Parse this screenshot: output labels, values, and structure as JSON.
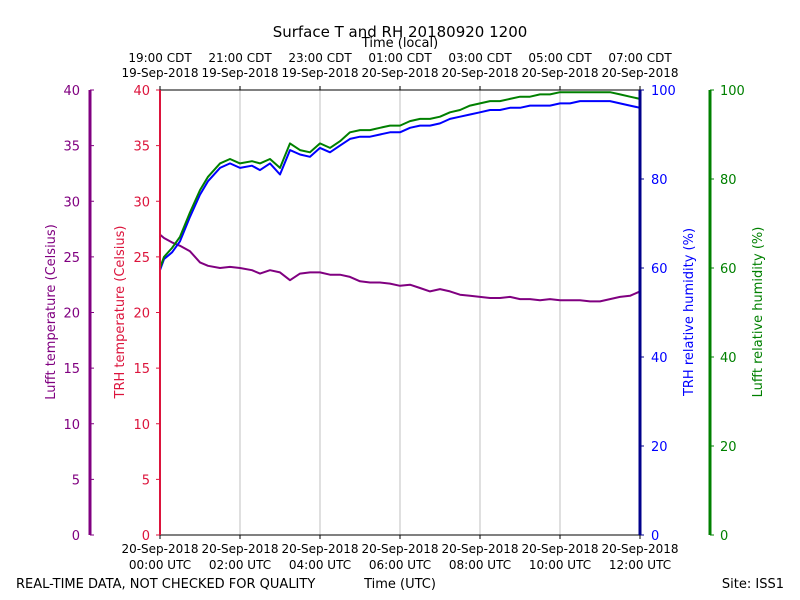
{
  "chart_data": {
    "type": "line",
    "title": "Surface T and RH 20180920 1200",
    "top_axis_title": "Time (local)",
    "xlabel": "Time (UTC)",
    "top_ticks": [
      {
        "time": "19:00 CDT",
        "date": "19-Sep-2018"
      },
      {
        "time": "21:00 CDT",
        "date": "19-Sep-2018"
      },
      {
        "time": "23:00 CDT",
        "date": "19-Sep-2018"
      },
      {
        "time": "01:00 CDT",
        "date": "20-Sep-2018"
      },
      {
        "time": "03:00 CDT",
        "date": "20-Sep-2018"
      },
      {
        "time": "05:00 CDT",
        "date": "20-Sep-2018"
      },
      {
        "time": "07:00 CDT",
        "date": "20-Sep-2018"
      }
    ],
    "bottom_ticks": [
      {
        "date": "20-Sep-2018",
        "time": "00:00 UTC"
      },
      {
        "date": "20-Sep-2018",
        "time": "02:00 UTC"
      },
      {
        "date": "20-Sep-2018",
        "time": "04:00 UTC"
      },
      {
        "date": "20-Sep-2018",
        "time": "06:00 UTC"
      },
      {
        "date": "20-Sep-2018",
        "time": "08:00 UTC"
      },
      {
        "date": "20-Sep-2018",
        "time": "10:00 UTC"
      },
      {
        "date": "20-Sep-2018",
        "time": "12:00 UTC"
      }
    ],
    "x_range_hours": [
      0,
      12
    ],
    "grid": true,
    "temp_axes": {
      "range": [
        0,
        40
      ],
      "ticks": [
        "0",
        "5",
        "10",
        "15",
        "20",
        "25",
        "30",
        "35",
        "40"
      ],
      "lufft_label": "Lufft temperature (Celsius)",
      "trh_label": "TRH temperature (Celsius)"
    },
    "rh_axes": {
      "range": [
        0,
        100
      ],
      "ticks": [
        "0",
        "20",
        "40",
        "60",
        "80",
        "100"
      ],
      "trh_label": "TRH relative humidity (%)",
      "lufft_label": "Lufft relative humidity (%)"
    },
    "series": [
      {
        "name": "Lufft temperature",
        "axis": "temperature",
        "color": "#800080",
        "x": [
          0,
          0.1,
          0.3,
          0.5,
          0.75,
          1.0,
          1.2,
          1.5,
          1.75,
          2.0,
          2.3,
          2.5,
          2.75,
          3.0,
          3.25,
          3.5,
          3.75,
          4.0,
          4.25,
          4.5,
          4.75,
          5.0,
          5.25,
          5.5,
          5.75,
          6.0,
          6.25,
          6.5,
          6.75,
          7.0,
          7.25,
          7.5,
          7.75,
          8.0,
          8.25,
          8.5,
          8.75,
          9.0,
          9.25,
          9.5,
          9.75,
          10.0,
          10.25,
          10.5,
          10.75,
          11.0,
          11.25,
          11.5,
          11.75,
          12.0
        ],
        "values": [
          27.0,
          26.7,
          26.3,
          26.0,
          25.5,
          24.5,
          24.2,
          24.0,
          24.1,
          24.0,
          23.8,
          23.5,
          23.8,
          23.6,
          22.9,
          23.5,
          23.6,
          23.6,
          23.4,
          23.4,
          23.2,
          22.8,
          22.7,
          22.7,
          22.6,
          22.4,
          22.5,
          22.2,
          21.9,
          22.1,
          21.9,
          21.6,
          21.5,
          21.4,
          21.3,
          21.3,
          21.4,
          21.2,
          21.2,
          21.1,
          21.2,
          21.1,
          21.1,
          21.1,
          21.0,
          21.0,
          21.2,
          21.4,
          21.5,
          21.9
        ]
      },
      {
        "name": "TRH relative humidity",
        "axis": "humidity",
        "color": "#0000ff",
        "x": [
          0,
          0.1,
          0.3,
          0.5,
          0.75,
          1.0,
          1.2,
          1.5,
          1.75,
          2.0,
          2.3,
          2.5,
          2.75,
          3.0,
          3.25,
          3.5,
          3.75,
          4.0,
          4.25,
          4.5,
          4.75,
          5.0,
          5.25,
          5.5,
          5.75,
          6.0,
          6.25,
          6.5,
          6.75,
          7.0,
          7.25,
          7.5,
          7.75,
          8.0,
          8.25,
          8.5,
          8.75,
          9.0,
          9.25,
          9.5,
          9.75,
          10.0,
          10.25,
          10.5,
          10.75,
          11.0,
          11.25,
          11.5,
          11.75,
          12.0
        ],
        "values": [
          59.5,
          62.0,
          63.5,
          66.0,
          71.5,
          76.5,
          79.5,
          82.5,
          83.5,
          82.5,
          83.0,
          82.0,
          83.5,
          81.0,
          86.5,
          85.5,
          85.0,
          87.0,
          86.0,
          87.5,
          89.0,
          89.5,
          89.5,
          90.0,
          90.5,
          90.5,
          91.5,
          92.0,
          92.0,
          92.5,
          93.5,
          94.0,
          94.5,
          95.0,
          95.5,
          95.5,
          96.0,
          96.0,
          96.5,
          96.5,
          96.5,
          97.0,
          97.0,
          97.5,
          97.5,
          97.5,
          97.5,
          97.0,
          96.5,
          96.0
        ]
      },
      {
        "name": "Lufft relative humidity",
        "axis": "humidity",
        "color": "#008000",
        "x": [
          0,
          0.1,
          0.3,
          0.5,
          0.75,
          1.0,
          1.2,
          1.5,
          1.75,
          2.0,
          2.3,
          2.5,
          2.75,
          3.0,
          3.25,
          3.5,
          3.75,
          4.0,
          4.25,
          4.5,
          4.75,
          5.0,
          5.25,
          5.5,
          5.75,
          6.0,
          6.25,
          6.5,
          6.75,
          7.0,
          7.25,
          7.5,
          7.75,
          8.0,
          8.25,
          8.5,
          8.75,
          9.0,
          9.25,
          9.5,
          9.75,
          10.0,
          10.25,
          10.5,
          10.75,
          11.0,
          11.25,
          11.5,
          11.75,
          12.0
        ],
        "values": [
          60.0,
          62.5,
          64.5,
          67.0,
          72.5,
          77.5,
          80.5,
          83.5,
          84.5,
          83.5,
          84.0,
          83.5,
          84.5,
          82.5,
          88.0,
          86.5,
          86.0,
          88.0,
          87.0,
          88.5,
          90.5,
          91.0,
          91.0,
          91.5,
          92.0,
          92.0,
          93.0,
          93.5,
          93.5,
          94.0,
          95.0,
          95.5,
          96.5,
          97.0,
          97.5,
          97.5,
          98.0,
          98.5,
          98.5,
          99.0,
          99.0,
          99.5,
          99.5,
          99.5,
          99.5,
          99.5,
          99.5,
          99.0,
          98.5,
          98.0
        ]
      }
    ]
  },
  "footer": {
    "quality_note": "REAL-TIME DATA, NOT CHECKED FOR QUALITY",
    "site": "Site: ISS1"
  },
  "colors": {
    "lufft_temp": "#800080",
    "trh_temp": "#dc143c",
    "trh_rh": "#0000ff",
    "lufft_rh": "#008000"
  }
}
